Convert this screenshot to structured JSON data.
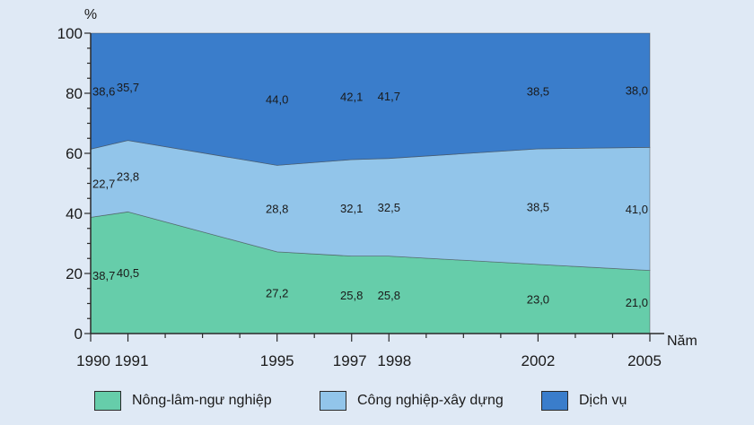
{
  "chart_data": {
    "type": "area",
    "stacked": true,
    "y_unit_label": "%",
    "x_unit_label": "Năm",
    "x": [
      1990,
      1991,
      1995,
      1997,
      1998,
      2002,
      2005
    ],
    "x_tick_labels": [
      "1990",
      "1991",
      "1995",
      "1997",
      "1998",
      "2002",
      "2005"
    ],
    "y_ticks": [
      0,
      20,
      40,
      60,
      80,
      100
    ],
    "ylim": [
      0,
      100
    ],
    "series": [
      {
        "name": "Nông-lâm-ngư nghiệp",
        "values": [
          38.7,
          40.5,
          27.2,
          25.8,
          25.8,
          23.0,
          21.0
        ],
        "labels": [
          "38,7",
          "40,5",
          "27,2",
          "25,8",
          "25,8",
          "23,0",
          "21,0"
        ],
        "color": "#66cdaa"
      },
      {
        "name": "Công nghiệp-xây dựng",
        "values": [
          22.7,
          23.8,
          28.8,
          32.1,
          32.5,
          38.5,
          41.0
        ],
        "labels": [
          "22,7",
          "23,8",
          "28,8",
          "32,1",
          "32,5",
          "38,5",
          "41,0"
        ],
        "color": "#92c5ea"
      },
      {
        "name": "Dịch vụ",
        "values": [
          38.6,
          35.7,
          44.0,
          42.1,
          41.7,
          38.5,
          38.0
        ],
        "labels": [
          "38,6",
          "35,7",
          "44,0",
          "42,1",
          "41,7",
          "38,5",
          "38,0"
        ],
        "color": "#3a7dcb"
      }
    ],
    "legend_position": "bottom",
    "grid": false
  }
}
